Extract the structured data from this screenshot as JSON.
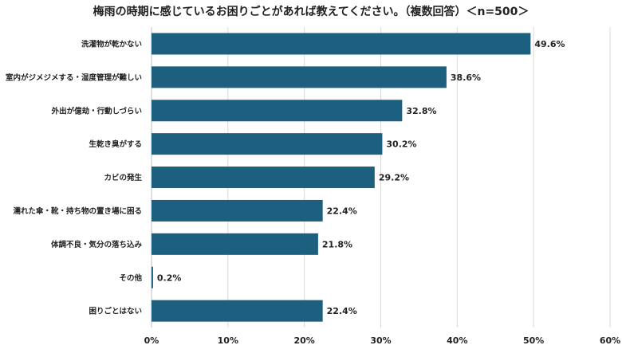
{
  "chart_data": {
    "type": "bar",
    "orientation": "horizontal",
    "title": "梅雨の時期に感じているお困りごとがあれば教えてください。（複数回答）＜n=500＞",
    "categories": [
      "洗濯物が乾かない",
      "室内がジメジメする・湿度管理が難しい",
      "外出が億劫・行動しづらい",
      "生乾き臭がする",
      "カビの発生",
      "濡れた傘・靴・持ち物の置き場に困る",
      "体調不良・気分の落ち込み",
      "その他",
      "困りごとはない"
    ],
    "values": [
      49.6,
      38.6,
      32.8,
      30.2,
      29.2,
      22.4,
      21.8,
      0.2,
      22.4
    ],
    "value_labels": [
      "49.6%",
      "38.6%",
      "32.8%",
      "30.2%",
      "29.2%",
      "22.4%",
      "21.8%",
      "0.2%",
      "22.4%"
    ],
    "xlim": [
      0,
      60
    ],
    "xticks": [
      0,
      10,
      20,
      30,
      40,
      50,
      60
    ],
    "xtick_labels": [
      "0%",
      "10%",
      "20%",
      "30%",
      "40%",
      "50%",
      "60%"
    ],
    "grid": "vertical",
    "bar_color": "#1d5f7e",
    "grid_color": "#d9d9d9"
  }
}
